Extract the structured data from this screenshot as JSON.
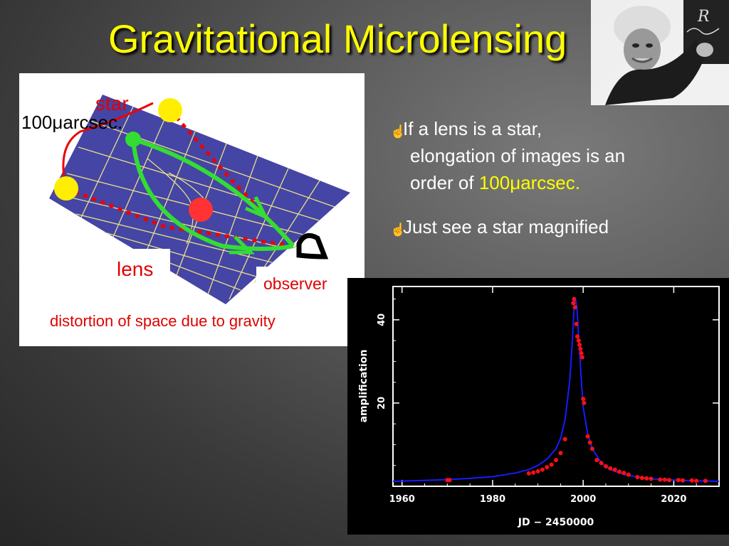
{
  "title": "Gravitational Microlensing",
  "photo": {
    "chalk_text": "R"
  },
  "diagram": {
    "label_star": "star",
    "label_angle": "100μarcsec.",
    "label_lens": "lens",
    "label_observer": "observer",
    "caption": "distortion of space due to gravity"
  },
  "bullets": {
    "b1_line1": "If a lens is a star,",
    "b1_line2": "elongation of images is an",
    "b1_line3_pre": "order of ",
    "b1_line3_hl": "100μarcsec",
    "b1_line3_post": ".",
    "b2": "Just see a star magnified"
  },
  "colors": {
    "title": "#ffff00",
    "curve": "#1a1aff",
    "points": "#ff1010",
    "grid_plane": "#4040a0"
  },
  "chart_data": {
    "type": "scatter",
    "xlabel": "JD − 2450000",
    "ylabel": "amplification",
    "xlim": [
      1958,
      2030
    ],
    "ylim": [
      0,
      48
    ],
    "xticks": [
      "1960",
      "1980",
      "2000",
      "2020"
    ],
    "yticks": [
      "20",
      "40"
    ],
    "series": [
      {
        "type": "line",
        "x": [
          1958,
          1965,
          1970,
          1975,
          1980,
          1985,
          1988,
          1990,
          1992,
          1994,
          1995,
          1996,
          1997,
          1997.5,
          1998,
          1998.3,
          1998.6,
          1999,
          1999.5,
          2000,
          2001,
          2002,
          2004,
          2006,
          2008,
          2010,
          2015,
          2020,
          2025,
          2030
        ],
        "y": [
          1.2,
          1.4,
          1.6,
          1.9,
          2.3,
          3.2,
          4.0,
          5.0,
          6.5,
          9.0,
          11.5,
          16,
          25,
          33,
          43,
          45,
          43,
          36,
          27,
          19,
          12.5,
          9,
          5.6,
          4.0,
          3.2,
          2.6,
          1.8,
          1.5,
          1.3,
          1.2
        ]
      },
      {
        "type": "scatter",
        "x": [
          1970,
          1970.5,
          1988,
          1989,
          1990,
          1991,
          1992,
          1993,
          1994,
          1995,
          1996,
          1997.8,
          1998,
          1998.2,
          1998.5,
          1998.7,
          1999,
          1999.2,
          1999.4,
          1999.6,
          1999.8,
          2000,
          2000.2,
          2001,
          2001.5,
          2002,
          2003,
          2004,
          2005,
          2006,
          2007,
          2008,
          2009,
          2010,
          2012,
          2013,
          2014,
          2015,
          2017,
          2018,
          2019,
          2021,
          2022,
          2024,
          2025,
          2027
        ],
        "y": [
          1.5,
          1.5,
          3.1,
          3.3,
          3.6,
          4.0,
          4.6,
          5.2,
          6.3,
          8.0,
          11.3,
          44,
          45,
          43,
          39,
          36,
          35,
          34,
          33,
          32,
          31,
          21,
          20,
          12,
          10.5,
          9,
          6.3,
          5.6,
          4.8,
          4.3,
          4.0,
          3.5,
          3.2,
          2.8,
          2.2,
          2.0,
          1.9,
          1.8,
          1.6,
          1.6,
          1.5,
          1.5,
          1.4,
          1.4,
          1.3,
          1.3
        ]
      }
    ]
  }
}
